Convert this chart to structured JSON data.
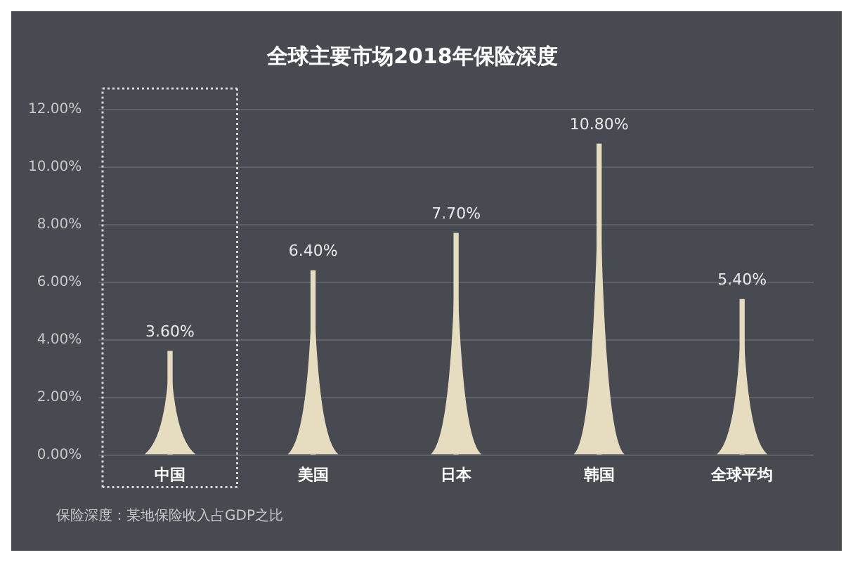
{
  "chart_data": {
    "type": "bar",
    "title": "全球主要市场2018年保险深度",
    "categories": [
      "中国",
      "美国",
      "日本",
      "韩国",
      "全球平均"
    ],
    "values": [
      3.6,
      6.4,
      7.7,
      10.8,
      5.4
    ],
    "value_labels": [
      "3.60%",
      "6.40%",
      "7.70%",
      "10.80%",
      "5.40%"
    ],
    "color": "#e6dcbf",
    "ylim": [
      0,
      12
    ],
    "yticks": [
      {
        "value": 0,
        "label": "0.00%"
      },
      {
        "value": 2,
        "label": "2.00%"
      },
      {
        "value": 4,
        "label": "4.00%"
      },
      {
        "value": 6,
        "label": "6.00%"
      },
      {
        "value": 8,
        "label": "8.00%"
      },
      {
        "value": 10,
        "label": "10.00%"
      },
      {
        "value": 12,
        "label": "12.00%"
      }
    ],
    "grid": "y",
    "legend": false,
    "annotations": [
      "保险深度：某地保险收入占GDP之比"
    ]
  }
}
